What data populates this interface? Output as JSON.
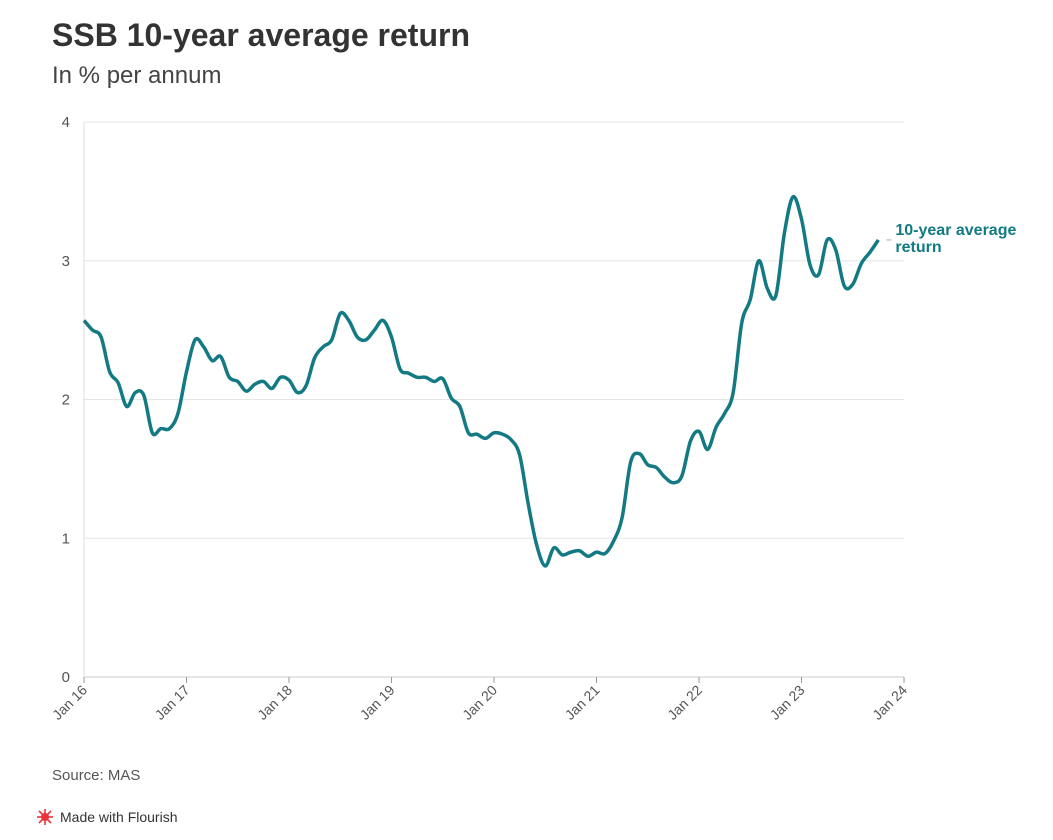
{
  "chart_data": {
    "type": "line",
    "title": "SSB 10-year average return",
    "subtitle": "In % per annum",
    "source": "Source: MAS",
    "footer": "Made with Flourish",
    "x": [
      "2016-01",
      "2016-02",
      "2016-03",
      "2016-04",
      "2016-05",
      "2016-06",
      "2016-07",
      "2016-08",
      "2016-09",
      "2016-10",
      "2016-11",
      "2016-12",
      "2017-01",
      "2017-02",
      "2017-03",
      "2017-04",
      "2017-05",
      "2017-06",
      "2017-07",
      "2017-08",
      "2017-09",
      "2017-10",
      "2017-11",
      "2017-12",
      "2018-01",
      "2018-02",
      "2018-03",
      "2018-04",
      "2018-05",
      "2018-06",
      "2018-07",
      "2018-08",
      "2018-09",
      "2018-10",
      "2018-11",
      "2018-12",
      "2019-01",
      "2019-02",
      "2019-03",
      "2019-04",
      "2019-05",
      "2019-06",
      "2019-07",
      "2019-08",
      "2019-09",
      "2019-10",
      "2019-11",
      "2019-12",
      "2020-01",
      "2020-02",
      "2020-03",
      "2020-04",
      "2020-05",
      "2020-06",
      "2020-07",
      "2020-08",
      "2020-09",
      "2020-10",
      "2020-11",
      "2020-12",
      "2021-01",
      "2021-02",
      "2021-03",
      "2021-04",
      "2021-05",
      "2021-06",
      "2021-07",
      "2021-08",
      "2021-09",
      "2021-10",
      "2021-11",
      "2021-12",
      "2022-01",
      "2022-02",
      "2022-03",
      "2022-04",
      "2022-05",
      "2022-06",
      "2022-07",
      "2022-08",
      "2022-09",
      "2022-10",
      "2022-11",
      "2022-12",
      "2023-01",
      "2023-02",
      "2023-03",
      "2023-04",
      "2023-05",
      "2023-06",
      "2023-07",
      "2023-08",
      "2023-09",
      "2023-10"
    ],
    "series": [
      {
        "name": "10-year average return",
        "color": "#137a84",
        "values": [
          2.57,
          2.5,
          2.45,
          2.2,
          2.12,
          1.95,
          2.05,
          2.03,
          1.76,
          1.79,
          1.79,
          1.9,
          2.2,
          2.43,
          2.38,
          2.28,
          2.31,
          2.16,
          2.13,
          2.06,
          2.11,
          2.13,
          2.08,
          2.16,
          2.14,
          2.05,
          2.1,
          2.3,
          2.38,
          2.43,
          2.62,
          2.57,
          2.45,
          2.43,
          2.5,
          2.57,
          2.45,
          2.22,
          2.19,
          2.16,
          2.16,
          2.13,
          2.15,
          2.01,
          1.95,
          1.76,
          1.75,
          1.72,
          1.76,
          1.75,
          1.71,
          1.6,
          1.25,
          0.95,
          0.8,
          0.93,
          0.88,
          0.9,
          0.91,
          0.87,
          0.9,
          0.89,
          0.98,
          1.15,
          1.55,
          1.61,
          1.53,
          1.51,
          1.44,
          1.4,
          1.45,
          1.7,
          1.77,
          1.64,
          1.8,
          1.9,
          2.05,
          2.55,
          2.72,
          3.0,
          2.8,
          2.75,
          3.2,
          3.46,
          3.3,
          2.97,
          2.9,
          3.15,
          3.08,
          2.82,
          2.83,
          2.98,
          3.06,
          3.15
        ]
      }
    ],
    "xlim": [
      "2016-01",
      "2024-01"
    ],
    "xticks": [
      {
        "value": "2016-01",
        "label": "Jan 16"
      },
      {
        "value": "2017-01",
        "label": "Jan 17"
      },
      {
        "value": "2018-01",
        "label": "Jan 18"
      },
      {
        "value": "2019-01",
        "label": "Jan 19"
      },
      {
        "value": "2020-01",
        "label": "Jan 20"
      },
      {
        "value": "2021-01",
        "label": "Jan 21"
      },
      {
        "value": "2022-01",
        "label": "Jan 22"
      },
      {
        "value": "2023-01",
        "label": "Jan 23"
      },
      {
        "value": "2024-01",
        "label": "Jan 24"
      }
    ],
    "ylim": [
      0,
      4
    ],
    "yticks": [
      0,
      1,
      2,
      3,
      4
    ],
    "grid": true
  }
}
